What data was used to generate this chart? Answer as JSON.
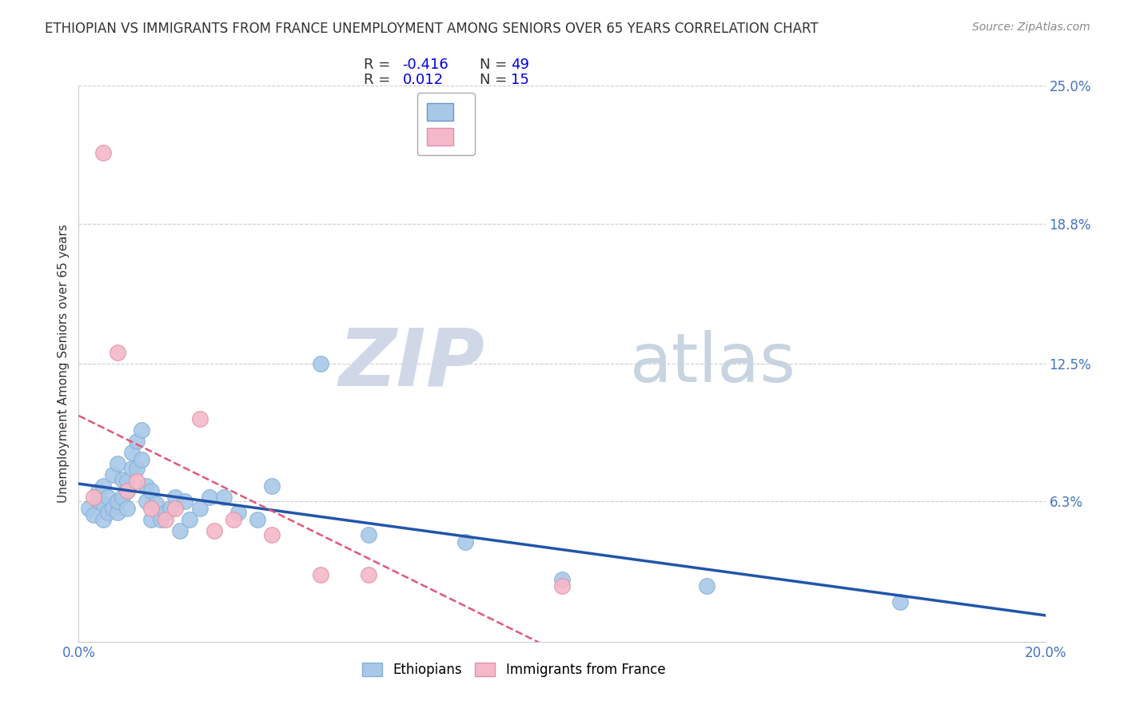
{
  "title": "ETHIOPIAN VS IMMIGRANTS FROM FRANCE UNEMPLOYMENT AMONG SENIORS OVER 65 YEARS CORRELATION CHART",
  "source": "Source: ZipAtlas.com",
  "ylabel": "Unemployment Among Seniors over 65 years",
  "xlim": [
    0.0,
    0.2
  ],
  "ylim": [
    0.0,
    0.25
  ],
  "ytick_positions": [
    0.063,
    0.125,
    0.188,
    0.25
  ],
  "ytick_labels": [
    "6.3%",
    "12.5%",
    "18.8%",
    "25.0%"
  ],
  "grid_color": "#cccccc",
  "background_color": "#ffffff",
  "ethiopians": {
    "color": "#a8c8e8",
    "edge_color": "#85b0d8",
    "R": -0.416,
    "N": 49,
    "label": "Ethiopians",
    "trend_color": "#2255aa",
    "x": [
      0.002,
      0.003,
      0.004,
      0.004,
      0.005,
      0.005,
      0.005,
      0.006,
      0.006,
      0.007,
      0.007,
      0.008,
      0.008,
      0.008,
      0.009,
      0.009,
      0.01,
      0.01,
      0.01,
      0.011,
      0.011,
      0.012,
      0.012,
      0.013,
      0.013,
      0.014,
      0.014,
      0.015,
      0.015,
      0.016,
      0.017,
      0.018,
      0.019,
      0.02,
      0.021,
      0.022,
      0.023,
      0.025,
      0.027,
      0.03,
      0.033,
      0.037,
      0.04,
      0.05,
      0.06,
      0.08,
      0.1,
      0.13,
      0.17
    ],
    "y": [
      0.06,
      0.057,
      0.063,
      0.068,
      0.062,
      0.055,
      0.07,
      0.058,
      0.065,
      0.06,
      0.075,
      0.058,
      0.063,
      0.08,
      0.065,
      0.073,
      0.06,
      0.068,
      0.072,
      0.078,
      0.085,
      0.09,
      0.078,
      0.082,
      0.095,
      0.063,
      0.07,
      0.055,
      0.068,
      0.062,
      0.055,
      0.058,
      0.06,
      0.065,
      0.05,
      0.063,
      0.055,
      0.06,
      0.065,
      0.065,
      0.058,
      0.055,
      0.07,
      0.125,
      0.048,
      0.045,
      0.028,
      0.025,
      0.018
    ]
  },
  "france": {
    "color": "#f5b8c8",
    "edge_color": "#e090a8",
    "R": 0.012,
    "N": 15,
    "label": "Immigrants from France",
    "trend_color": "#e05878",
    "x": [
      0.003,
      0.005,
      0.008,
      0.01,
      0.012,
      0.015,
      0.018,
      0.02,
      0.025,
      0.028,
      0.032,
      0.04,
      0.05,
      0.06,
      0.1
    ],
    "y": [
      0.065,
      0.22,
      0.13,
      0.068,
      0.072,
      0.06,
      0.055,
      0.06,
      0.1,
      0.05,
      0.055,
      0.048,
      0.03,
      0.03,
      0.025
    ]
  },
  "legend_R_color": "#0000ff",
  "legend_N_color": "#0000ff",
  "legend_label_color": "#333333"
}
